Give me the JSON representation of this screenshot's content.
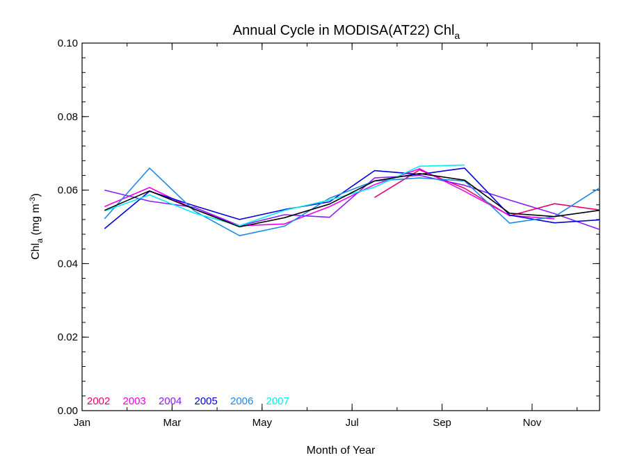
{
  "chart_data": {
    "type": "line",
    "title_main": "Annual Cycle in MODISA(AT22) Chl",
    "title_sub": "a",
    "xlabel": "Month of Year",
    "ylabel_main": "Chl",
    "ylabel_sub": "a",
    "ylabel_unit": " (mg m",
    "ylabel_sup": "-3",
    "ylabel_close": ")",
    "ylim": [
      0.0,
      0.1
    ],
    "xlim": [
      1,
      12.5
    ],
    "x_ticks": [
      {
        "label": "Jan",
        "value": 1
      },
      {
        "label": "Mar",
        "value": 3
      },
      {
        "label": "May",
        "value": 5
      },
      {
        "label": "Jul",
        "value": 7
      },
      {
        "label": "Sep",
        "value": 9
      },
      {
        "label": "Nov",
        "value": 11
      }
    ],
    "y_ticks": [
      {
        "label": "0.00",
        "value": 0.0
      },
      {
        "label": "0.02",
        "value": 0.02
      },
      {
        "label": "0.04",
        "value": 0.04
      },
      {
        "label": "0.06",
        "value": 0.06
      },
      {
        "label": "0.08",
        "value": 0.08
      },
      {
        "label": "0.10",
        "value": 0.1
      }
    ],
    "x": [
      1.5,
      2.5,
      3.5,
      4.5,
      5.5,
      6.5,
      7.5,
      8.5,
      9.5,
      10.5,
      11.5,
      12.5
    ],
    "series": [
      {
        "name": "2002",
        "color": "#e6006e",
        "values": [
          null,
          null,
          null,
          null,
          null,
          null,
          0.058,
          0.0655,
          0.0605,
          0.053,
          0.0563,
          0.0546
        ]
      },
      {
        "name": "2003",
        "color": "#ee00ee",
        "values": [
          0.0555,
          0.0607,
          0.0548,
          0.0503,
          0.0508,
          0.0555,
          0.0615,
          0.0658,
          0.0597,
          0.0531,
          0.0522,
          null
        ]
      },
      {
        "name": "2004",
        "color": "#8c1aff",
        "values": [
          0.06,
          0.057,
          0.0553,
          0.0503,
          0.0533,
          0.0526,
          0.0633,
          0.064,
          0.0613,
          0.0573,
          0.0536,
          0.0493
        ]
      },
      {
        "name": "2005",
        "color": "#0000dd",
        "values": [
          0.0495,
          0.0597,
          0.0557,
          0.052,
          0.0547,
          0.0568,
          0.0653,
          0.0643,
          0.066,
          0.0532,
          0.0511,
          0.0519
        ]
      },
      {
        "name": "2006",
        "color": "#1e88e5",
        "values": [
          0.0522,
          0.066,
          0.0543,
          0.0476,
          0.0502,
          0.0578,
          0.0625,
          0.0633,
          0.0625,
          0.051,
          0.0528,
          0.0606
        ]
      },
      {
        "name": "2007",
        "color": "#00eeee",
        "values": [
          0.0543,
          0.0587,
          0.0537,
          0.0503,
          0.0545,
          0.0573,
          0.0608,
          0.0665,
          0.0668,
          null,
          null,
          null
        ]
      },
      {
        "color": "#000000",
        "values": [
          0.0545,
          0.0598,
          0.0548,
          0.05,
          0.0525,
          0.0562,
          0.0625,
          0.0645,
          0.0627,
          0.0537,
          0.0528,
          0.0545
        ]
      }
    ],
    "grid": false,
    "legend_position": "bottom-left"
  }
}
